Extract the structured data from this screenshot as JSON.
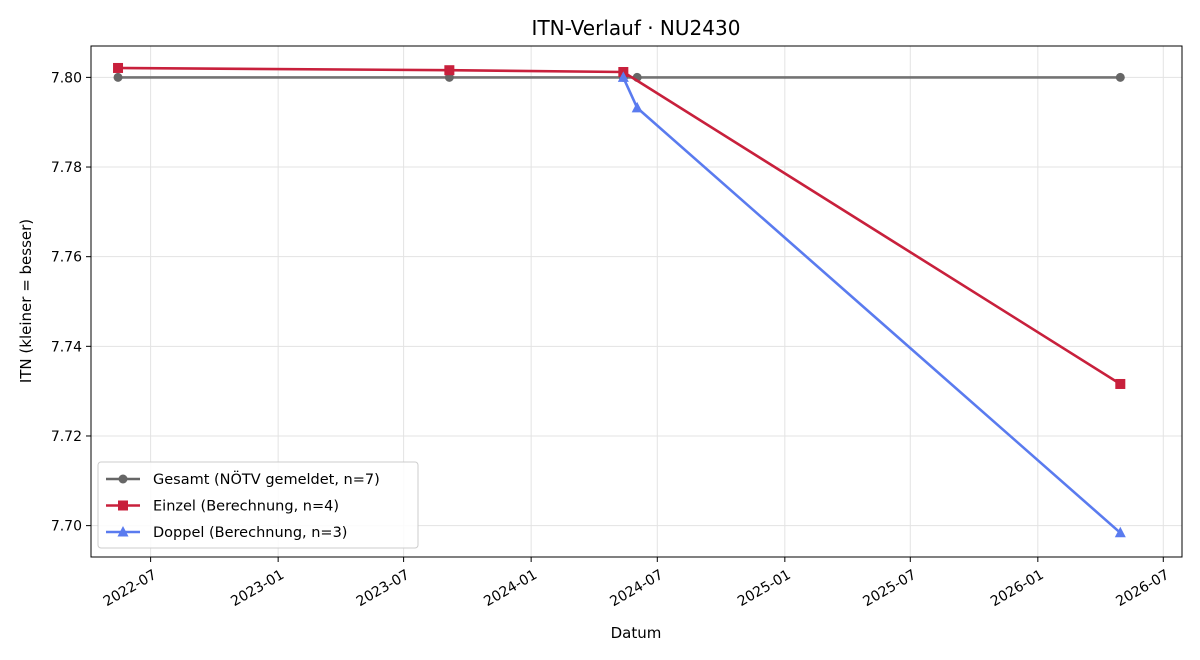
{
  "chart_data": {
    "type": "line",
    "title": "ITN-Verlauf · NU2430",
    "xlabel": "Datum",
    "ylabel": "ITN  (kleiner = besser)",
    "ylim": [
      7.693,
      7.807
    ],
    "xlim": [
      "2022-04-06",
      "2026-07-28"
    ],
    "grid": true,
    "legend_position": "lower-left",
    "x_ticks": [
      "2022-07",
      "2023-01",
      "2023-07",
      "2024-01",
      "2024-07",
      "2025-01",
      "2025-07",
      "2026-01",
      "2026-07"
    ],
    "y_ticks": [
      "7.70",
      "7.72",
      "7.74",
      "7.76",
      "7.78",
      "7.80"
    ],
    "series": [
      {
        "name": "Gesamt (NÖTV gemeldet, n=7)",
        "color": "#666666",
        "marker": "circle",
        "points": [
          {
            "x": "2022-05-15",
            "y": 7.8
          },
          {
            "x": "2023-09-05",
            "y": 7.8
          },
          {
            "x": "2024-05-13",
            "y": 7.8
          },
          {
            "x": "2024-06-02",
            "y": 7.8
          },
          {
            "x": "2026-04-30",
            "y": 7.8
          }
        ]
      },
      {
        "name": "Einzel (Berechnung, n=4)",
        "color": "#c8203c",
        "marker": "square",
        "points": [
          {
            "x": "2022-05-15",
            "y": 7.8021
          },
          {
            "x": "2023-09-05",
            "y": 7.8016
          },
          {
            "x": "2024-05-13",
            "y": 7.8012
          },
          {
            "x": "2026-04-30",
            "y": 7.7316
          }
        ]
      },
      {
        "name": "Doppel (Berechnung, n=3)",
        "color": "#5a7bef",
        "marker": "triangle",
        "points": [
          {
            "x": "2024-05-13",
            "y": 7.8
          },
          {
            "x": "2024-06-02",
            "y": 7.7932
          },
          {
            "x": "2026-04-30",
            "y": 7.6984
          }
        ]
      }
    ]
  }
}
